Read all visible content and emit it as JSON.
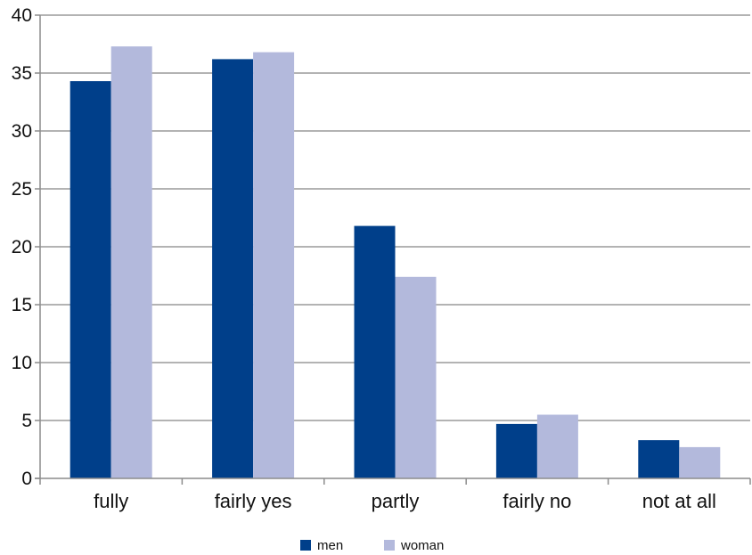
{
  "chart_data": {
    "type": "bar",
    "title": "",
    "xlabel": "",
    "ylabel": "",
    "categories": [
      "fully",
      "fairly yes",
      "partly",
      "fairly no",
      "not at all"
    ],
    "series": [
      {
        "name": "men",
        "color": "#003f8a",
        "values": [
          34.3,
          36.2,
          21.8,
          4.7,
          3.3
        ]
      },
      {
        "name": "woman",
        "color": "#b3b9dc",
        "values": [
          37.3,
          36.8,
          17.4,
          5.5,
          2.7
        ]
      }
    ],
    "ylim": [
      0,
      40
    ],
    "yticks": [
      0,
      5,
      10,
      15,
      20,
      25,
      30,
      35,
      40
    ],
    "grid": true,
    "legend_position": "bottom"
  }
}
